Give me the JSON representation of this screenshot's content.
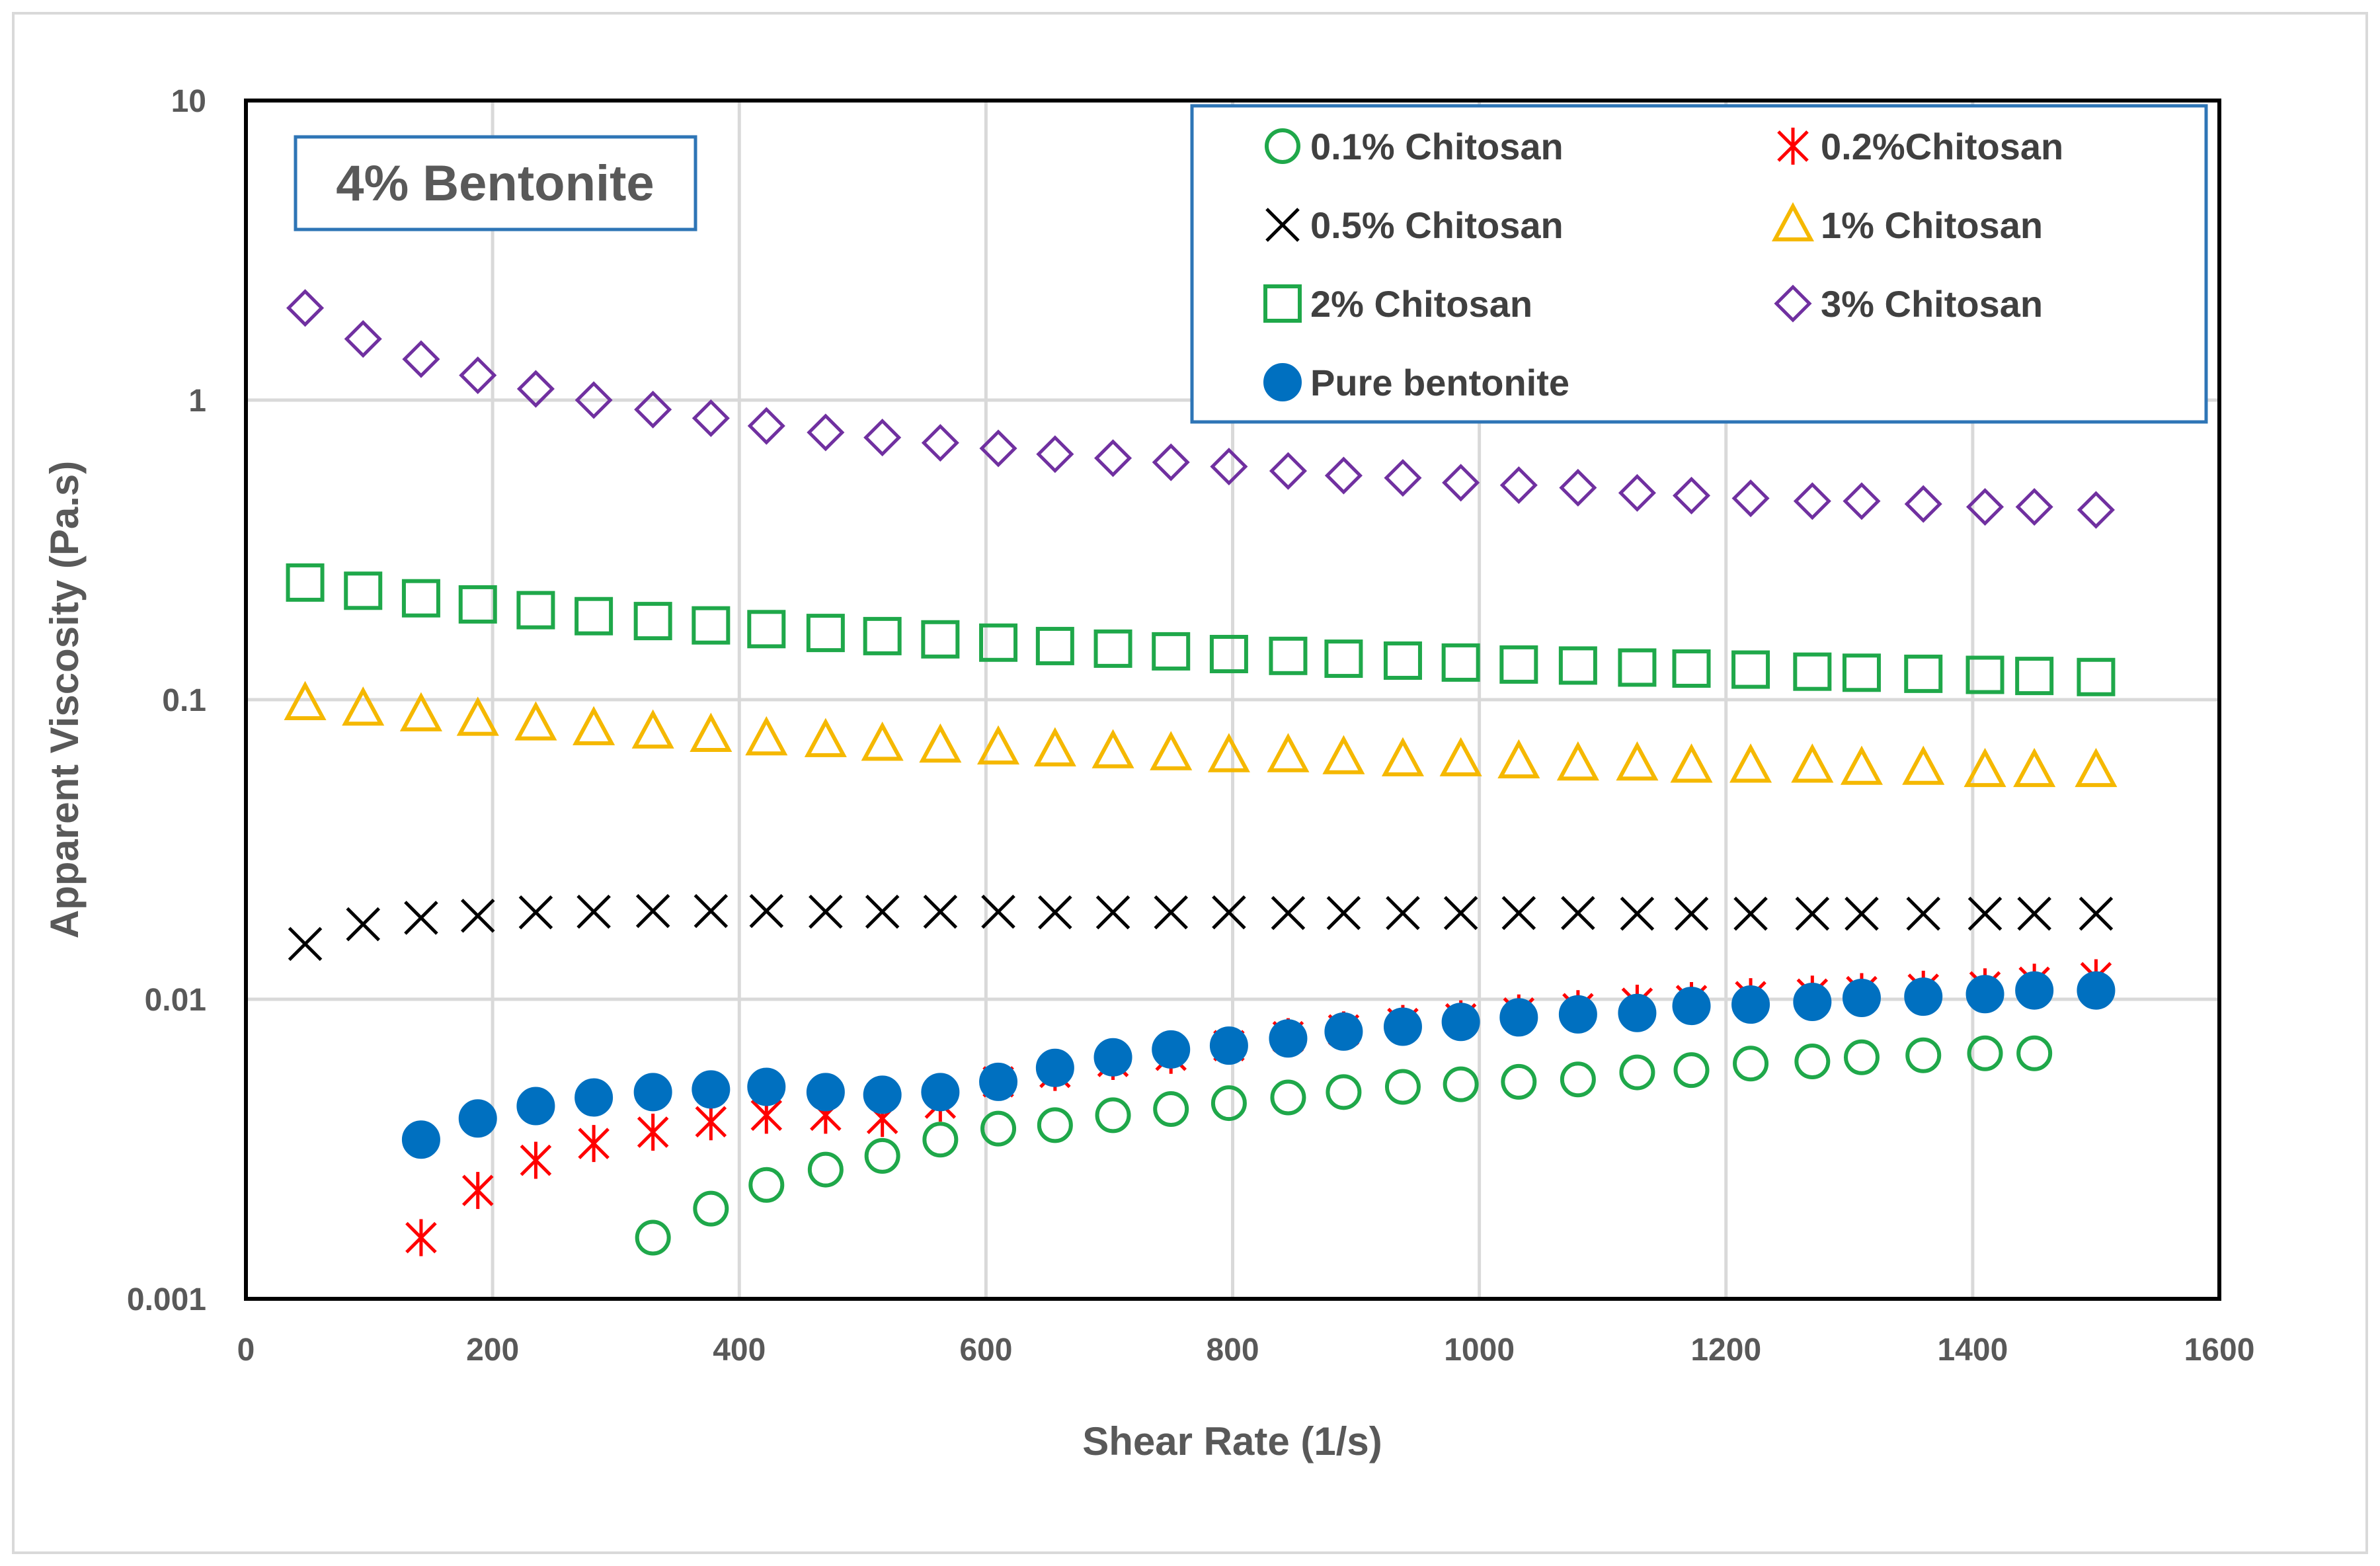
{
  "chart_data": {
    "type": "scatter",
    "title": "",
    "annotation": "4% Bentonite",
    "xlabel": "Shear Rate (1/s)",
    "ylabel": "Apparent Viscosity (Pa.s)",
    "xlim": [
      0,
      1600
    ],
    "ylim": [
      0.001,
      10
    ],
    "yscale": "log",
    "x_ticks": [
      0,
      200,
      400,
      600,
      800,
      1000,
      1200,
      1400,
      1600
    ],
    "x_tick_labels": [
      "0",
      "200",
      "400",
      "600",
      "800",
      "1000",
      "1200",
      "1400",
      "1600"
    ],
    "y_ticks": [
      0.001,
      0.01,
      0.1,
      1,
      10
    ],
    "y_tick_labels": [
      "0.001",
      "0.01",
      "0.1",
      "1",
      "10"
    ],
    "grid": true,
    "legend_position": "top-right",
    "series": [
      {
        "name": "0.1% Chitosan",
        "marker": "circle-open",
        "color": "#1fa84a",
        "x": [
          330,
          377,
          422,
          470,
          516,
          563,
          610,
          656,
          703,
          750,
          797,
          845,
          890,
          938,
          985,
          1032,
          1080,
          1128,
          1172,
          1220,
          1270,
          1310,
          1360,
          1410,
          1450
        ],
        "y": [
          0.0016,
          0.002,
          0.0024,
          0.0027,
          0.003,
          0.0034,
          0.0037,
          0.0038,
          0.0041,
          0.0043,
          0.0045,
          0.0047,
          0.0049,
          0.0051,
          0.0052,
          0.0053,
          0.0054,
          0.0057,
          0.0058,
          0.0061,
          0.0062,
          0.0064,
          0.0065,
          0.0066,
          0.0066
        ]
      },
      {
        "name": "0.2%Chitosan",
        "marker": "asterisk",
        "color": "#ff0000",
        "x": [
          142,
          188,
          235,
          282,
          330,
          377,
          422,
          470,
          516,
          563,
          610,
          656,
          703,
          750,
          797,
          845,
          890,
          938,
          985,
          1032,
          1080,
          1128,
          1172,
          1220,
          1270,
          1310,
          1360,
          1410,
          1450,
          1500
        ],
        "y": [
          0.0016,
          0.0023,
          0.0029,
          0.0033,
          0.0036,
          0.0039,
          0.0041,
          0.0041,
          0.004,
          0.0045,
          0.0053,
          0.0057,
          0.0062,
          0.0065,
          0.007,
          0.0075,
          0.0079,
          0.0083,
          0.0086,
          0.009,
          0.0093,
          0.0097,
          0.0099,
          0.0102,
          0.0104,
          0.0106,
          0.0108,
          0.011,
          0.0114,
          0.0118
        ]
      },
      {
        "name": "0.5% Chitosan",
        "marker": "x",
        "color": "#000000",
        "x": [
          48,
          95,
          142,
          188,
          235,
          282,
          330,
          377,
          422,
          470,
          516,
          563,
          610,
          656,
          703,
          750,
          797,
          845,
          890,
          938,
          985,
          1032,
          1080,
          1128,
          1172,
          1220,
          1270,
          1310,
          1360,
          1410,
          1450,
          1500
        ],
        "y": [
          0.0153,
          0.0178,
          0.0187,
          0.019,
          0.0195,
          0.0196,
          0.0197,
          0.0197,
          0.0197,
          0.0196,
          0.0196,
          0.0196,
          0.0196,
          0.0195,
          0.0195,
          0.0195,
          0.0195,
          0.0194,
          0.0194,
          0.0194,
          0.0194,
          0.0194,
          0.0194,
          0.0193,
          0.0193,
          0.0193,
          0.0193,
          0.0193,
          0.0193,
          0.0193,
          0.0193,
          0.0193
        ]
      },
      {
        "name": "1% Chitosan",
        "marker": "triangle-open",
        "color": "#f5b800",
        "x": [
          48,
          95,
          142,
          188,
          235,
          282,
          330,
          377,
          422,
          470,
          516,
          563,
          610,
          656,
          703,
          750,
          797,
          845,
          890,
          938,
          985,
          1032,
          1080,
          1128,
          1172,
          1220,
          1270,
          1310,
          1360,
          1410,
          1450,
          1500
        ],
        "y": [
          0.097,
          0.093,
          0.089,
          0.086,
          0.083,
          0.08,
          0.078,
          0.076,
          0.074,
          0.073,
          0.071,
          0.07,
          0.069,
          0.068,
          0.067,
          0.066,
          0.065,
          0.065,
          0.064,
          0.063,
          0.063,
          0.062,
          0.061,
          0.061,
          0.06,
          0.06,
          0.06,
          0.059,
          0.059,
          0.058,
          0.058,
          0.058
        ]
      },
      {
        "name": "2% Chitosan",
        "marker": "square-open",
        "color": "#1fa84a",
        "x": [
          48,
          95,
          142,
          188,
          235,
          282,
          330,
          377,
          422,
          470,
          516,
          563,
          610,
          656,
          703,
          750,
          797,
          845,
          890,
          938,
          985,
          1032,
          1080,
          1128,
          1172,
          1220,
          1270,
          1310,
          1360,
          1410,
          1450,
          1500
        ],
        "y": [
          0.246,
          0.231,
          0.218,
          0.208,
          0.199,
          0.19,
          0.183,
          0.177,
          0.172,
          0.167,
          0.163,
          0.159,
          0.155,
          0.151,
          0.148,
          0.145,
          0.142,
          0.14,
          0.137,
          0.135,
          0.133,
          0.131,
          0.13,
          0.128,
          0.127,
          0.126,
          0.124,
          0.123,
          0.122,
          0.121,
          0.12,
          0.119
        ]
      },
      {
        "name": "3% Chitosan",
        "marker": "diamond-open",
        "color": "#7030a0",
        "x": [
          48,
          95,
          142,
          188,
          235,
          282,
          330,
          377,
          422,
          470,
          516,
          563,
          610,
          656,
          703,
          750,
          797,
          845,
          890,
          938,
          985,
          1032,
          1080,
          1128,
          1172,
          1220,
          1270,
          1310,
          1360,
          1410,
          1450,
          1500
        ],
        "y": [
          2.03,
          1.6,
          1.37,
          1.21,
          1.09,
          1.0,
          0.93,
          0.87,
          0.82,
          0.78,
          0.75,
          0.72,
          0.69,
          0.66,
          0.64,
          0.62,
          0.6,
          0.58,
          0.56,
          0.55,
          0.53,
          0.52,
          0.51,
          0.49,
          0.48,
          0.47,
          0.46,
          0.46,
          0.45,
          0.44,
          0.44,
          0.43
        ]
      },
      {
        "name": "Pure bentonite",
        "marker": "circle-filled",
        "color": "#0070c0",
        "x": [
          142,
          188,
          235,
          282,
          330,
          377,
          422,
          470,
          516,
          563,
          610,
          656,
          703,
          750,
          797,
          845,
          890,
          938,
          985,
          1032,
          1080,
          1128,
          1172,
          1220,
          1270,
          1310,
          1360,
          1410,
          1450,
          1500
        ],
        "y": [
          0.0034,
          0.004,
          0.0044,
          0.0047,
          0.0049,
          0.005,
          0.0051,
          0.0049,
          0.0048,
          0.0049,
          0.0053,
          0.0059,
          0.0064,
          0.0068,
          0.007,
          0.0074,
          0.0078,
          0.0081,
          0.0084,
          0.0087,
          0.0089,
          0.009,
          0.0095,
          0.0096,
          0.0098,
          0.0101,
          0.0102,
          0.0104,
          0.0107,
          0.0107
        ]
      }
    ]
  }
}
